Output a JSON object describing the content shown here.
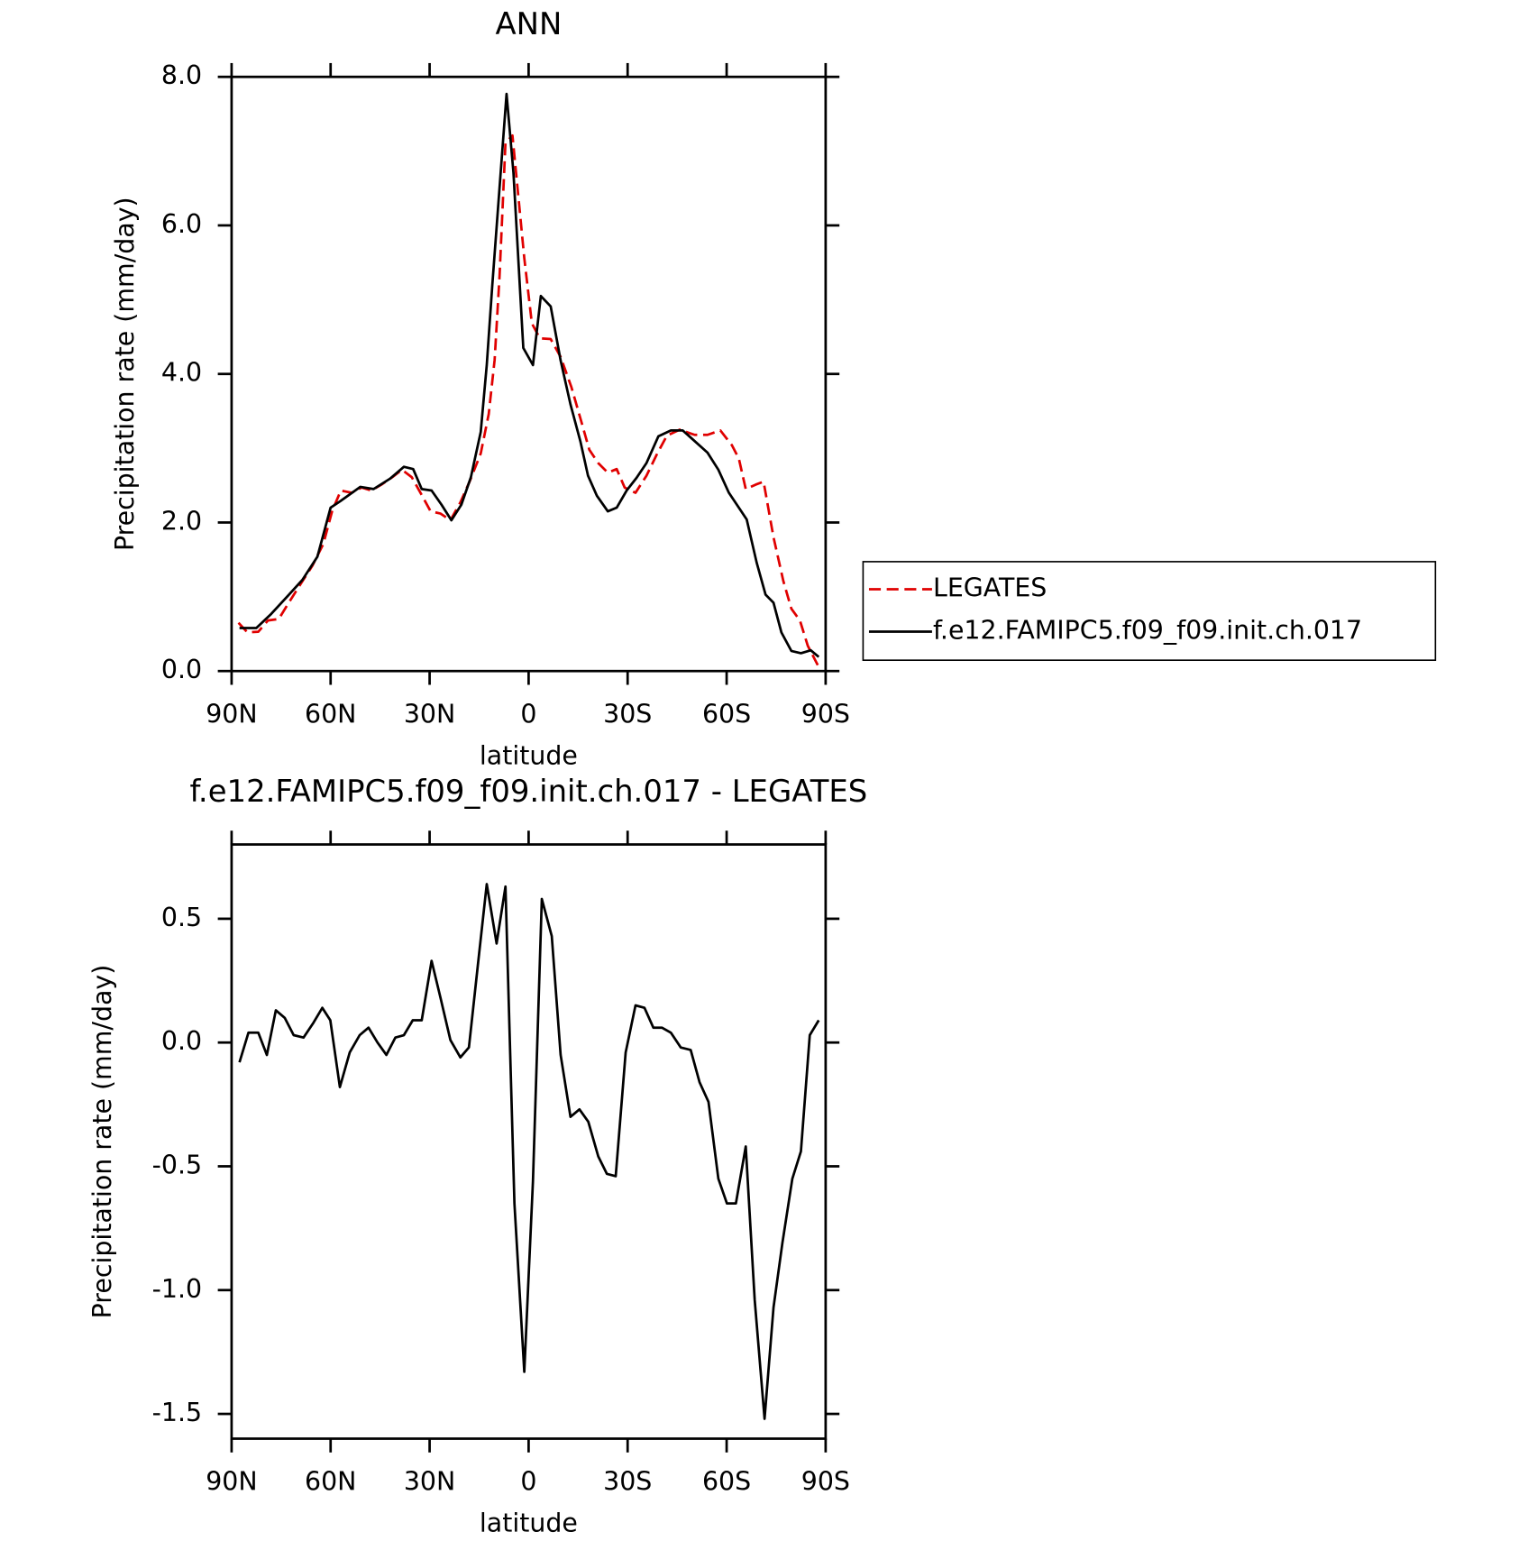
{
  "chart_data": [
    {
      "type": "line",
      "title": "ANN",
      "xlabel": "latitude",
      "ylabel": "Precipitation rate (mm/day)",
      "xlim": [
        90,
        -90
      ],
      "xticks": [
        {
          "value": 90,
          "label": "90N"
        },
        {
          "value": 60,
          "label": "60N"
        },
        {
          "value": 30,
          "label": "30N"
        },
        0,
        {
          "value": -30,
          "label": "30S"
        },
        {
          "value": -60,
          "label": "60S"
        },
        {
          "value": -90,
          "label": "90S"
        }
      ],
      "ylim": [
        0,
        8
      ],
      "yticks": [
        {
          "value": 0,
          "label": "0.0"
        },
        {
          "value": 2,
          "label": "2.0"
        },
        {
          "value": 4,
          "label": "4.0"
        },
        {
          "value": 6,
          "label": "6.0"
        },
        {
          "value": 8,
          "label": "8.0"
        }
      ],
      "legend": "right",
      "series": [
        {
          "name": "LEGATES",
          "color": "#e00000",
          "dashed": true,
          "x": [
            87.9,
            85.2,
            81.9,
            79,
            75.7,
            72.7,
            69.1,
            65.5,
            62.2,
            59.5,
            56.9,
            53.6,
            50.6,
            47.6,
            44.6,
            41.3,
            38.4,
            35.4,
            32.4,
            29.7,
            26.7,
            23.7,
            20.7,
            17.8,
            14.5,
            12.1,
            10.3,
            8.8,
            7,
            4.9,
            2.8,
            1.3,
            -1,
            -3.4,
            -6.7,
            -9.7,
            -13,
            -15.7,
            -18.4,
            -21.1,
            -24,
            -26.7,
            -29.1,
            -32.4,
            -35.7,
            -39,
            -41.9,
            -45.8,
            -50.3,
            -54.2,
            -58.1,
            -61.6,
            -63.7,
            -65.8,
            -68.8,
            -71.2,
            -74.2,
            -77.2,
            -79.6,
            -82.2,
            -84.6,
            -87.6
          ],
          "values": [
            0.65,
            0.52,
            0.53,
            0.68,
            0.7,
            0.92,
            1.17,
            1.42,
            1.71,
            2.16,
            2.43,
            2.4,
            2.47,
            2.43,
            2.51,
            2.61,
            2.71,
            2.61,
            2.37,
            2.15,
            2.12,
            2.03,
            2.27,
            2.56,
            2.93,
            3.46,
            4.19,
            5.32,
            7.11,
            7.21,
            6.25,
            5.56,
            4.68,
            4.48,
            4.47,
            4.23,
            3.82,
            3.4,
            2.98,
            2.8,
            2.67,
            2.72,
            2.47,
            2.4,
            2.63,
            2.93,
            3.17,
            3.25,
            3.18,
            3.18,
            3.24,
            3.04,
            2.86,
            2.45,
            2.51,
            2.55,
            1.8,
            1.21,
            0.84,
            0.68,
            0.34,
            0.08
          ]
        },
        {
          "name": "f.e12.FAMIPC5.f09_f09.init.ch.017",
          "color": "#000000",
          "dashed": false,
          "x": [
            87.6,
            82.5,
            78,
            73,
            68.5,
            64,
            60,
            57,
            51,
            47,
            42,
            37.8,
            35,
            32.4,
            29.4,
            26.4,
            23.4,
            20.4,
            17.5,
            14.5,
            12.7,
            11,
            8.8,
            6.7,
            4.6,
            1.6,
            -1.3,
            -3.7,
            -6.7,
            -9.7,
            -12.7,
            -15.7,
            -18,
            -20.7,
            -24,
            -26.7,
            -29.7,
            -32.7,
            -35.7,
            -39.3,
            -43.1,
            -46.7,
            -49.7,
            -54.2,
            -57.5,
            -60.7,
            -63.7,
            -66.1,
            -69.1,
            -71.8,
            -74.2,
            -76.6,
            -79.6,
            -82.5,
            -85.5,
            -87.9
          ],
          "values": [
            0.58,
            0.58,
            0.77,
            1.01,
            1.23,
            1.54,
            2.2,
            2.29,
            2.48,
            2.45,
            2.59,
            2.75,
            2.72,
            2.45,
            2.43,
            2.24,
            2.03,
            2.24,
            2.61,
            3.22,
            4.12,
            5.19,
            6.51,
            7.77,
            6.71,
            4.35,
            4.12,
            5.05,
            4.91,
            4.18,
            3.59,
            3.09,
            2.63,
            2.36,
            2.15,
            2.2,
            2.43,
            2.6,
            2.8,
            3.16,
            3.24,
            3.24,
            3.12,
            2.94,
            2.71,
            2.4,
            2.2,
            2.04,
            1.46,
            1.03,
            0.92,
            0.52,
            0.27,
            0.24,
            0.28,
            0.19
          ]
        }
      ]
    },
    {
      "type": "line",
      "title": "f.e12.FAMIPC5.f09_f09.init.ch.017 - LEGATES",
      "xlabel": "latitude",
      "ylabel": "Precipitation rate (mm/day)",
      "xlim": [
        90,
        -90
      ],
      "xticks": [
        {
          "value": 90,
          "label": "90N"
        },
        {
          "value": 60,
          "label": "60N"
        },
        {
          "value": 30,
          "label": "30N"
        },
        0,
        {
          "value": -30,
          "label": "30S"
        },
        {
          "value": -60,
          "label": "60S"
        },
        {
          "value": -90,
          "label": "90S"
        }
      ],
      "ylim": [
        -1.6,
        0.8
      ],
      "yticks": [
        {
          "value": -1.5,
          "label": "-1.5"
        },
        {
          "value": -1,
          "label": "-1.0"
        },
        {
          "value": -0.5,
          "label": "-0.5"
        },
        {
          "value": 0,
          "label": "0.0"
        },
        0.5
      ],
      "color": "#000000",
      "x": [
        87.6,
        84.9,
        81.9,
        79.3,
        76.6,
        73.9,
        71.2,
        68.2,
        65.2,
        62.5,
        60.1,
        57.2,
        54.2,
        51.2,
        48.5,
        45.8,
        43.1,
        40.4,
        37.8,
        35.1,
        32.4,
        29.4,
        26.7,
        23.7,
        20.7,
        18.1,
        15.4,
        12.7,
        9.7,
        7,
        4.3,
        1.3,
        -1.3,
        -4,
        -7,
        -9.7,
        -12.7,
        -15.4,
        -18.1,
        -21.1,
        -23.7,
        -26.4,
        -29.4,
        -32.4,
        -35.1,
        -37.8,
        -40.4,
        -43.1,
        -46.1,
        -49.1,
        -51.8,
        -54.5,
        -57.5,
        -60.1,
        -62.8,
        -65.8,
        -68.5,
        -71.5,
        -74.2,
        -76.9,
        -79.9,
        -82.5,
        -85.2,
        -87.9
      ],
      "values": [
        -0.08,
        0.04,
        0.04,
        -0.05,
        0.13,
        0.1,
        0.03,
        0.02,
        0.08,
        0.14,
        0.09,
        -0.18,
        -0.04,
        0.03,
        0.06,
        0.0,
        -0.05,
        0.02,
        0.03,
        0.09,
        0.09,
        0.33,
        0.18,
        0.01,
        -0.06,
        -0.02,
        0.31,
        0.64,
        0.4,
        0.63,
        -0.65,
        -1.33,
        -0.56,
        0.58,
        0.43,
        -0.05,
        -0.3,
        -0.27,
        -0.32,
        -0.46,
        -0.53,
        -0.54,
        -0.04,
        0.15,
        0.14,
        0.06,
        0.06,
        0.04,
        -0.02,
        -0.03,
        -0.16,
        -0.24,
        -0.55,
        -0.65,
        -0.65,
        -0.42,
        -1.04,
        -1.52,
        -1.07,
        -0.81,
        -0.55,
        -0.44,
        0.03,
        0.09
      ]
    }
  ]
}
